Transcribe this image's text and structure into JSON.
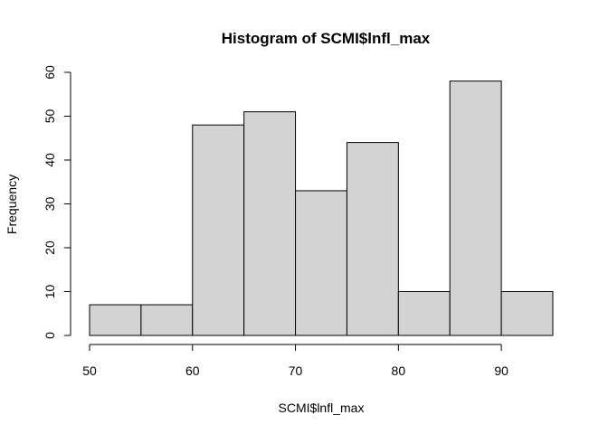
{
  "chart_data": {
    "type": "bar",
    "subtype": "histogram",
    "title": "Histogram of SCMI$lnfl_max",
    "xlabel": "SCMI$lnfl_max",
    "ylabel": "Frequency",
    "bins": [
      {
        "start": 50,
        "end": 55,
        "count": 7
      },
      {
        "start": 55,
        "end": 60,
        "count": 7
      },
      {
        "start": 60,
        "end": 65,
        "count": 48
      },
      {
        "start": 65,
        "end": 70,
        "count": 51
      },
      {
        "start": 70,
        "end": 75,
        "count": 33
      },
      {
        "start": 75,
        "end": 80,
        "count": 44
      },
      {
        "start": 80,
        "end": 85,
        "count": 10
      },
      {
        "start": 85,
        "end": 90,
        "count": 58
      },
      {
        "start": 90,
        "end": 95,
        "count": 10
      }
    ],
    "xticks": [
      50,
      60,
      70,
      80,
      90
    ],
    "yticks": [
      0,
      10,
      20,
      30,
      40,
      50,
      60
    ],
    "xlim": [
      50,
      95
    ],
    "ylim": [
      0,
      60
    ],
    "bar_color": "#d3d3d3",
    "grid": false,
    "legend": "none"
  }
}
